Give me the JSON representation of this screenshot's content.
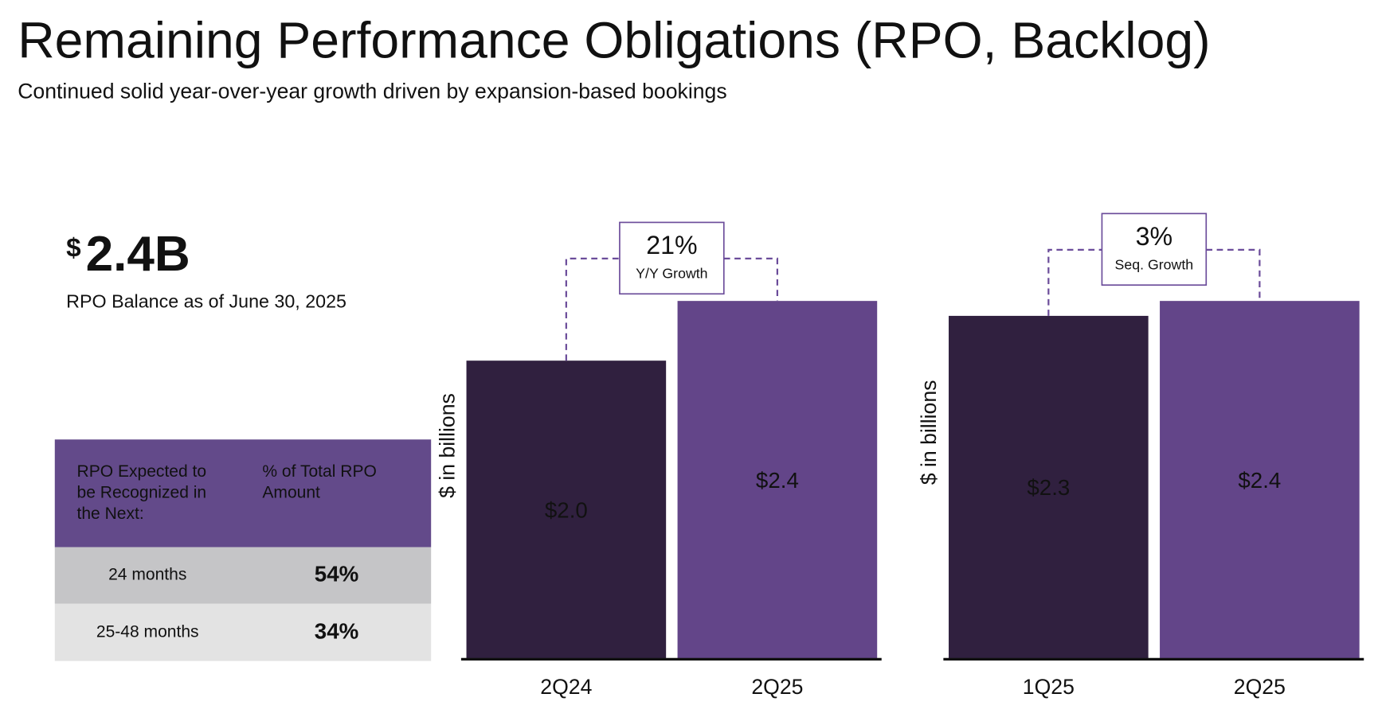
{
  "header": {
    "title": "Remaining Performance Obligations (RPO, Backlog)",
    "subtitle": "Continued solid year-over-year growth driven by expansion-based bookings"
  },
  "kpi": {
    "currency": "$",
    "value": "2.4B",
    "label": "RPO Balance as of June 30, 2025"
  },
  "table": {
    "columns": [
      [
        "RPO Expected to",
        "be Recognized in",
        "the Next:"
      ],
      [
        "% of Total RPO",
        "Amount"
      ]
    ],
    "rows": [
      [
        "24 months",
        "54%"
      ],
      [
        "25-48 months",
        "34%"
      ]
    ]
  },
  "chart_data": [
    {
      "type": "bar",
      "y_label": "$ in billions",
      "categories": [
        "2Q24",
        "2Q25"
      ],
      "values": [
        2.0,
        2.4
      ],
      "value_labels": [
        "$2.0",
        "$2.4"
      ],
      "colors": [
        "#30203f",
        "#634589"
      ],
      "ylim": [
        0,
        2.4
      ],
      "annotation": {
        "value": "21%",
        "label": "Y/Y Growth"
      }
    },
    {
      "type": "bar",
      "y_label": "$ in billions",
      "categories": [
        "1Q25",
        "2Q25"
      ],
      "values": [
        2.3,
        2.4
      ],
      "value_labels": [
        "$2.3",
        "$2.4"
      ],
      "colors": [
        "#30203f",
        "#634589"
      ],
      "ylim": [
        0,
        2.4
      ],
      "annotation": {
        "value": "3%",
        "label": "Seq. Growth"
      }
    }
  ]
}
